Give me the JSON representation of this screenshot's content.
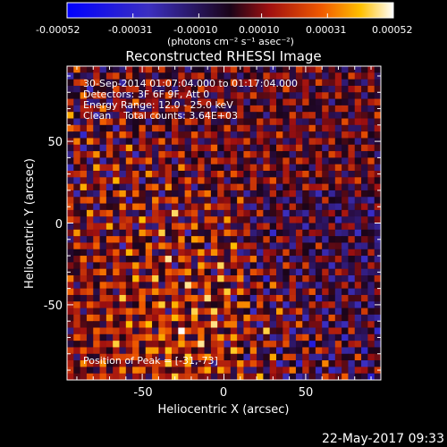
{
  "colorbar": {
    "tick_labels": [
      "-0.00052",
      "-0.00031",
      "-0.00010",
      "0.00010",
      "0.00031",
      "0.00052"
    ],
    "unit_label": "(photons cm⁻² s⁻¹ asec⁻²)",
    "range": [
      -0.00052,
      0.00052
    ]
  },
  "chart_data": {
    "type": "heatmap",
    "title": "Reconstructed RHESSI Image",
    "xlabel": "Heliocentric X (arcsec)",
    "ylabel": "Heliocentric Y (arcsec)",
    "xlim": [
      -96,
      96
    ],
    "ylim": [
      -96,
      96
    ],
    "x_ticks": [
      "-50",
      "0",
      "50"
    ],
    "y_ticks": [
      "50",
      "0",
      "-50"
    ],
    "x_tick_values": [
      -50,
      0,
      50
    ],
    "y_tick_values": [
      50,
      0,
      -50
    ],
    "annotations": [
      "30-Sep-2014 01:07:04.000 to 01:17:04.000",
      "Detectors: 3F 6F 9F, Att 0",
      "Energy Range: 12.0 - 25.0 keV",
      "Clean    Total counts: 3.64E+03"
    ],
    "peak_text": "Position of Peak = [-31,-73]",
    "peak_position": [
      -31,
      -73
    ],
    "grid": false
  },
  "footer": {
    "date": "22-May-2017 09:33"
  }
}
